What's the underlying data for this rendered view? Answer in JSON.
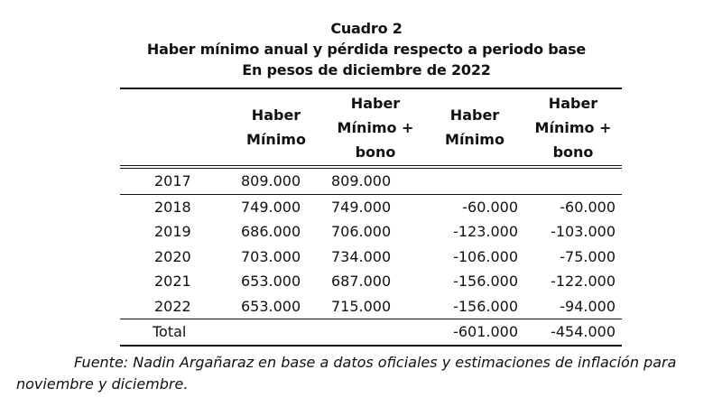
{
  "title": {
    "line1": "Cuadro 2",
    "line2": "Haber mínimo anual y pérdida respecto a periodo base",
    "line3": "En pesos de diciembre de 2022"
  },
  "table": {
    "headers": [
      {
        "lines": [
          ""
        ]
      },
      {
        "lines": [
          "Haber",
          "Mínimo"
        ]
      },
      {
        "lines": [
          "Haber",
          "Mínimo +",
          "bono"
        ]
      },
      {
        "lines": [
          "Haber",
          "Mínimo"
        ]
      },
      {
        "lines": [
          "Haber",
          "Mínimo +",
          "bono"
        ]
      }
    ],
    "rows": [
      {
        "year": "2017",
        "haber_minimo": "809.000",
        "haber_minimo_bono": "809.000",
        "perdida_minimo": "",
        "perdida_minimo_bono": ""
      },
      {
        "year": "2018",
        "haber_minimo": "749.000",
        "haber_minimo_bono": "749.000",
        "perdida_minimo": "-60.000",
        "perdida_minimo_bono": "-60.000"
      },
      {
        "year": "2019",
        "haber_minimo": "686.000",
        "haber_minimo_bono": "706.000",
        "perdida_minimo": "-123.000",
        "perdida_minimo_bono": "-103.000"
      },
      {
        "year": "2020",
        "haber_minimo": "703.000",
        "haber_minimo_bono": "734.000",
        "perdida_minimo": "-106.000",
        "perdida_minimo_bono": "-75.000"
      },
      {
        "year": "2021",
        "haber_minimo": "653.000",
        "haber_minimo_bono": "687.000",
        "perdida_minimo": "-156.000",
        "perdida_minimo_bono": "-122.000"
      },
      {
        "year": "2022",
        "haber_minimo": "653.000",
        "haber_minimo_bono": "715.000",
        "perdida_minimo": "-156.000",
        "perdida_minimo_bono": "-94.000"
      }
    ],
    "total": {
      "label": "Total",
      "haber_minimo": "",
      "haber_minimo_bono": "",
      "perdida_minimo": "-601.000",
      "perdida_minimo_bono": "-454.000"
    }
  },
  "source": "Fuente: Nadin Argañaraz en base a datos oficiales y estimaciones de inflación para noviembre y diciembre."
}
